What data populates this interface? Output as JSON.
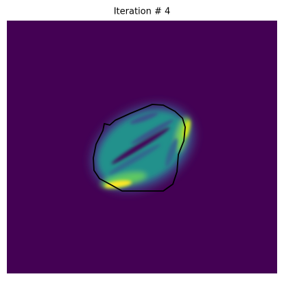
{
  "chart_data": {
    "type": "image",
    "title": "Iteration # 4"
  }
}
